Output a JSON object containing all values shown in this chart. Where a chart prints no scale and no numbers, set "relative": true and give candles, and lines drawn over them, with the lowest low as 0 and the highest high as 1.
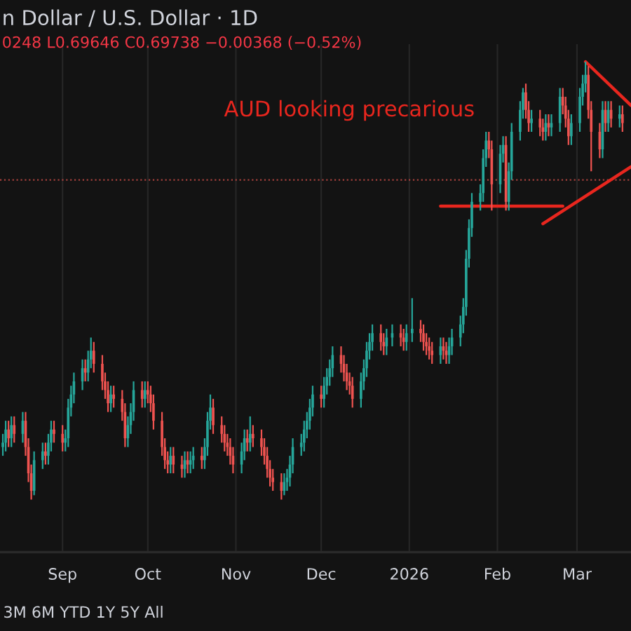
{
  "chart_data": {
    "type": "candlestick",
    "title": "n Dollar / U.S. Dollar · 1D",
    "subtitle": "0248 L0.69646 C0.69738 −0.00368 (−0.52%)",
    "annotations": [
      "AUD looking precarious",
      "3M 6M YTD 1Y 5Y All"
    ],
    "relative": true,
    "grid": "x",
    "tick_labels": "x",
    "xlim": [
      "2025-08-10",
      "2026-03-20"
    ],
    "xticks": [
      {
        "value": "2025-09-01",
        "label": "Sep"
      },
      {
        "value": "2025-10-01",
        "label": "Oct"
      },
      {
        "value": "2025-11-01",
        "label": "Nov"
      },
      {
        "value": "2025-12-01",
        "label": "Dec"
      },
      {
        "value": "2026-01-01",
        "label": "2026"
      },
      {
        "value": "2026-02-01",
        "label": "Feb"
      },
      {
        "value": "2026-03-01",
        "label": "Mar"
      }
    ],
    "x": [
      "2025-08-11",
      "2025-08-12",
      "2025-08-13",
      "2025-08-14",
      "2025-08-15",
      "2025-08-18",
      "2025-08-19",
      "2025-08-20",
      "2025-08-21",
      "2025-08-22",
      "2025-08-25",
      "2025-08-26",
      "2025-08-27",
      "2025-08-28",
      "2025-08-29",
      "2025-09-01",
      "2025-09-02",
      "2025-09-03",
      "2025-09-04",
      "2025-09-05",
      "2025-09-08",
      "2025-09-09",
      "2025-09-10",
      "2025-09-11",
      "2025-09-12",
      "2025-09-15",
      "2025-09-16",
      "2025-09-17",
      "2025-09-18",
      "2025-09-19",
      "2025-09-22",
      "2025-09-23",
      "2025-09-24",
      "2025-09-25",
      "2025-09-26",
      "2025-09-29",
      "2025-09-30",
      "2025-10-01",
      "2025-10-02",
      "2025-10-03",
      "2025-10-06",
      "2025-10-07",
      "2025-10-08",
      "2025-10-09",
      "2025-10-10",
      "2025-10-13",
      "2025-10-14",
      "2025-10-15",
      "2025-10-16",
      "2025-10-17",
      "2025-10-20",
      "2025-10-21",
      "2025-10-22",
      "2025-10-23",
      "2025-10-24",
      "2025-10-27",
      "2025-10-28",
      "2025-10-29",
      "2025-10-30",
      "2025-10-31",
      "2025-11-03",
      "2025-11-04",
      "2025-11-05",
      "2025-11-06",
      "2025-11-07",
      "2025-11-10",
      "2025-11-11",
      "2025-11-12",
      "2025-11-13",
      "2025-11-14",
      "2025-11-17",
      "2025-11-18",
      "2025-11-19",
      "2025-11-20",
      "2025-11-21",
      "2025-11-24",
      "2025-11-25",
      "2025-11-26",
      "2025-11-27",
      "2025-11-28",
      "2025-12-01",
      "2025-12-02",
      "2025-12-03",
      "2025-12-04",
      "2025-12-05",
      "2025-12-08",
      "2025-12-09",
      "2025-12-10",
      "2025-12-11",
      "2025-12-12",
      "2025-12-15",
      "2025-12-16",
      "2025-12-17",
      "2025-12-18",
      "2025-12-19",
      "2025-12-22",
      "2025-12-23",
      "2025-12-24",
      "2025-12-26",
      "2025-12-29",
      "2025-12-30",
      "2025-12-31",
      "2026-01-02",
      "2026-01-05",
      "2026-01-06",
      "2026-01-07",
      "2026-01-08",
      "2026-01-09",
      "2026-01-12",
      "2026-01-13",
      "2026-01-14",
      "2026-01-15",
      "2026-01-16",
      "2026-01-19",
      "2026-01-20",
      "2026-01-21",
      "2026-01-22",
      "2026-01-23",
      "2026-01-26",
      "2026-01-27",
      "2026-01-28",
      "2026-01-29",
      "2026-01-30",
      "2026-02-02",
      "2026-02-03",
      "2026-02-04",
      "2026-02-05",
      "2026-02-06",
      "2026-02-09",
      "2026-02-10",
      "2026-02-11",
      "2026-02-12",
      "2026-02-13",
      "2026-02-16",
      "2026-02-17",
      "2026-02-18",
      "2026-02-19",
      "2026-02-20",
      "2026-02-23",
      "2026-02-24",
      "2026-02-25",
      "2026-02-26",
      "2026-02-27",
      "2026-03-02",
      "2026-03-03",
      "2026-03-04",
      "2026-03-05",
      "2026-03-06",
      "2026-03-09",
      "2026-03-10",
      "2026-03-11",
      "2026-03-12",
      "2026-03-13",
      "2026-03-16",
      "2026-03-17"
    ],
    "ohlc": [
      [
        0.12,
        0.15,
        0.1,
        0.13
      ],
      [
        0.13,
        0.18,
        0.11,
        0.16
      ],
      [
        0.16,
        0.18,
        0.12,
        0.14
      ],
      [
        0.14,
        0.19,
        0.12,
        0.17
      ],
      [
        0.17,
        0.19,
        0.13,
        0.15
      ],
      [
        0.15,
        0.2,
        0.13,
        0.18
      ],
      [
        0.18,
        0.2,
        0.1,
        0.12
      ],
      [
        0.12,
        0.14,
        0.04,
        0.06
      ],
      [
        0.06,
        0.08,
        0,
        0.02
      ],
      [
        0.02,
        0.11,
        0.01,
        0.09
      ],
      [
        0.09,
        0.13,
        0.07,
        0.11
      ],
      [
        0.11,
        0.13,
        0.08,
        0.1
      ],
      [
        0.1,
        0.15,
        0.08,
        0.13
      ],
      [
        0.13,
        0.18,
        0.11,
        0.16
      ],
      [
        0.16,
        0.18,
        0.13,
        0.15
      ],
      [
        0.15,
        0.17,
        0.11,
        0.13
      ],
      [
        0.13,
        0.16,
        0.11,
        0.14
      ],
      [
        0.14,
        0.23,
        0.12,
        0.21
      ],
      [
        0.21,
        0.26,
        0.19,
        0.24
      ],
      [
        0.24,
        0.29,
        0.22,
        0.27
      ],
      [
        0.27,
        0.32,
        0.25,
        0.3
      ],
      [
        0.3,
        0.32,
        0.27,
        0.29
      ],
      [
        0.29,
        0.34,
        0.27,
        0.32
      ],
      [
        0.32,
        0.37,
        0.3,
        0.34
      ],
      [
        0.34,
        0.36,
        0.29,
        0.31
      ],
      [
        0.31,
        0.33,
        0.25,
        0.27
      ],
      [
        0.27,
        0.29,
        0.23,
        0.25
      ],
      [
        0.25,
        0.27,
        0.2,
        0.22
      ],
      [
        0.22,
        0.26,
        0.2,
        0.24
      ],
      [
        0.24,
        0.26,
        0.21,
        0.23
      ],
      [
        0.23,
        0.25,
        0.18,
        0.2
      ],
      [
        0.2,
        0.22,
        0.12,
        0.14
      ],
      [
        0.14,
        0.19,
        0.12,
        0.17
      ],
      [
        0.17,
        0.22,
        0.15,
        0.2
      ],
      [
        0.2,
        0.27,
        0.18,
        0.25
      ],
      [
        0.25,
        0.27,
        0.21,
        0.23
      ],
      [
        0.23,
        0.27,
        0.21,
        0.25
      ],
      [
        0.25,
        0.27,
        0.22,
        0.24
      ],
      [
        0.24,
        0.26,
        0.2,
        0.22
      ],
      [
        0.22,
        0.24,
        0.16,
        0.18
      ],
      [
        0.18,
        0.2,
        0.1,
        0.12
      ],
      [
        0.12,
        0.14,
        0.07,
        0.09
      ],
      [
        0.09,
        0.11,
        0.06,
        0.08
      ],
      [
        0.08,
        0.12,
        0.06,
        0.1
      ],
      [
        0.1,
        0.12,
        0.06,
        0.08
      ],
      [
        0.08,
        0.1,
        0.05,
        0.07
      ],
      [
        0.07,
        0.11,
        0.05,
        0.09
      ],
      [
        0.09,
        0.11,
        0.06,
        0.08
      ],
      [
        0.08,
        0.11,
        0.06,
        0.09
      ],
      [
        0.09,
        0.12,
        0.07,
        0.1
      ],
      [
        0.1,
        0.12,
        0.07,
        0.09
      ],
      [
        0.09,
        0.14,
        0.07,
        0.12
      ],
      [
        0.12,
        0.2,
        0.1,
        0.18
      ],
      [
        0.18,
        0.24,
        0.16,
        0.21
      ],
      [
        0.21,
        0.23,
        0.15,
        0.17
      ],
      [
        0.17,
        0.19,
        0.13,
        0.15
      ],
      [
        0.15,
        0.17,
        0.11,
        0.13
      ],
      [
        0.13,
        0.15,
        0.1,
        0.12
      ],
      [
        0.12,
        0.14,
        0.08,
        0.1
      ],
      [
        0.1,
        0.12,
        0.06,
        0.08
      ],
      [
        0.08,
        0.13,
        0.06,
        0.11
      ],
      [
        0.11,
        0.16,
        0.09,
        0.14
      ],
      [
        0.14,
        0.16,
        0.11,
        0.13
      ],
      [
        0.13,
        0.19,
        0.11,
        0.15
      ],
      [
        0.15,
        0.17,
        0.12,
        0.14
      ],
      [
        0.14,
        0.16,
        0.1,
        0.12
      ],
      [
        0.12,
        0.14,
        0.08,
        0.1
      ],
      [
        0.1,
        0.12,
        0.05,
        0.07
      ],
      [
        0.07,
        0.09,
        0.03,
        0.05
      ],
      [
        0.05,
        0.07,
        0.02,
        0.04
      ],
      [
        0.04,
        0.06,
        0,
        0.02
      ],
      [
        0.02,
        0.06,
        0.01,
        0.04
      ],
      [
        0.04,
        0.07,
        0.02,
        0.05
      ],
      [
        0.05,
        0.1,
        0.03,
        0.08
      ],
      [
        0.08,
        0.14,
        0.06,
        0.12
      ],
      [
        0.12,
        0.15,
        0.1,
        0.13
      ],
      [
        0.13,
        0.18,
        0.11,
        0.16
      ],
      [
        0.16,
        0.2,
        0.14,
        0.18
      ],
      [
        0.18,
        0.23,
        0.16,
        0.21
      ],
      [
        0.21,
        0.26,
        0.19,
        0.24
      ],
      [
        0.24,
        0.26,
        0.21,
        0.23
      ],
      [
        0.23,
        0.28,
        0.21,
        0.26
      ],
      [
        0.26,
        0.3,
        0.24,
        0.28
      ],
      [
        0.28,
        0.32,
        0.26,
        0.3
      ],
      [
        0.3,
        0.35,
        0.28,
        0.33
      ],
      [
        0.33,
        0.35,
        0.29,
        0.31
      ],
      [
        0.31,
        0.33,
        0.27,
        0.29
      ],
      [
        0.29,
        0.31,
        0.25,
        0.27
      ],
      [
        0.27,
        0.29,
        0.24,
        0.26
      ],
      [
        0.26,
        0.28,
        0.21,
        0.23
      ],
      [
        0.23,
        0.29,
        0.21,
        0.27
      ],
      [
        0.27,
        0.32,
        0.25,
        0.3
      ],
      [
        0.3,
        0.36,
        0.28,
        0.34
      ],
      [
        0.34,
        0.38,
        0.32,
        0.36
      ],
      [
        0.36,
        0.4,
        0.34,
        0.38
      ],
      [
        0.38,
        0.4,
        0.34,
        0.36
      ],
      [
        0.36,
        0.38,
        0.33,
        0.35
      ],
      [
        0.35,
        0.39,
        0.33,
        0.37
      ],
      [
        0.37,
        0.4,
        0.35,
        0.38
      ],
      [
        0.38,
        0.4,
        0.35,
        0.37
      ],
      [
        0.37,
        0.39,
        0.34,
        0.36
      ],
      [
        0.36,
        0.4,
        0.34,
        0.38
      ],
      [
        0.38,
        0.46,
        0.36,
        0.39
      ],
      [
        0.39,
        0.41,
        0.36,
        0.38
      ],
      [
        0.38,
        0.4,
        0.34,
        0.36
      ],
      [
        0.36,
        0.38,
        0.33,
        0.35
      ],
      [
        0.35,
        0.37,
        0.32,
        0.34
      ],
      [
        0.34,
        0.36,
        0.31,
        0.33
      ],
      [
        0.33,
        0.37,
        0.31,
        0.35
      ],
      [
        0.35,
        0.37,
        0.32,
        0.34
      ],
      [
        0.34,
        0.36,
        0.31,
        0.33
      ],
      [
        0.33,
        0.37,
        0.31,
        0.35
      ],
      [
        0.35,
        0.39,
        0.33,
        0.37
      ],
      [
        0.37,
        0.42,
        0.35,
        0.4
      ],
      [
        0.4,
        0.46,
        0.38,
        0.44
      ],
      [
        0.44,
        0.57,
        0.42,
        0.55
      ],
      [
        0.55,
        0.64,
        0.53,
        0.62
      ],
      [
        0.62,
        0.7,
        0.6,
        0.68
      ],
      [
        0.68,
        0.72,
        0.66,
        0.7
      ],
      [
        0.7,
        0.8,
        0.68,
        0.78
      ],
      [
        0.78,
        0.84,
        0.76,
        0.82
      ],
      [
        0.82,
        0.84,
        0.78,
        0.8
      ],
      [
        0.8,
        0.82,
        0.66,
        0.72
      ],
      [
        0.72,
        0.81,
        0.7,
        0.79
      ],
      [
        0.79,
        0.83,
        0.77,
        0.81
      ],
      [
        0.81,
        0.83,
        0.66,
        0.68
      ],
      [
        0.68,
        0.77,
        0.66,
        0.75
      ],
      [
        0.75,
        0.86,
        0.73,
        0.84
      ],
      [
        0.84,
        0.91,
        0.82,
        0.89
      ],
      [
        0.89,
        0.94,
        0.87,
        0.93
      ],
      [
        0.93,
        0.95,
        0.87,
        0.89
      ],
      [
        0.89,
        0.91,
        0.84,
        0.86
      ],
      [
        0.86,
        0.89,
        0.84,
        0.87
      ],
      [
        0.87,
        0.89,
        0.83,
        0.85
      ],
      [
        0.85,
        0.87,
        0.82,
        0.84
      ],
      [
        0.84,
        0.88,
        0.82,
        0.86
      ],
      [
        0.86,
        0.88,
        0.83,
        0.85
      ],
      [
        0.85,
        0.88,
        0.83,
        0.86
      ],
      [
        0.86,
        0.94,
        0.84,
        0.92
      ],
      [
        0.92,
        0.94,
        0.88,
        0.9
      ],
      [
        0.9,
        0.92,
        0.85,
        0.87
      ],
      [
        0.87,
        0.89,
        0.81,
        0.83
      ],
      [
        0.83,
        0.88,
        0.81,
        0.86
      ],
      [
        0.86,
        0.94,
        0.84,
        0.92
      ],
      [
        0.92,
        0.97,
        0.9,
        0.95
      ],
      [
        0.95,
        1,
        0.93,
        0.97
      ],
      [
        0.97,
        0.99,
        0.87,
        0.89
      ],
      [
        0.89,
        0.91,
        0.75,
        0.84
      ],
      [
        0.84,
        0.86,
        0.78,
        0.8
      ],
      [
        0.8,
        0.91,
        0.78,
        0.89
      ],
      [
        0.89,
        0.91,
        0.84,
        0.86
      ],
      [
        0.86,
        0.91,
        0.84,
        0.89
      ],
      [
        0.89,
        0.91,
        0.85,
        0.87
      ],
      [
        0.87,
        0.9,
        0.85,
        0.88
      ],
      [
        0.88,
        0.9,
        0.84,
        0.86
      ]
    ],
    "colors": [
      "#26a69a",
      "#26a69a",
      "#ef5350",
      "#26a69a",
      "#ef5350",
      "#26a69a",
      "#ef5350",
      "#ef5350",
      "#ef5350",
      "#26a69a",
      "#26a69a",
      "#ef5350",
      "#26a69a",
      "#26a69a",
      "#ef5350",
      "#ef5350",
      "#26a69a",
      "#26a69a",
      "#26a69a",
      "#26a69a",
      "#26a69a",
      "#ef5350",
      "#26a69a",
      "#26a69a",
      "#ef5350",
      "#ef5350",
      "#ef5350",
      "#ef5350",
      "#26a69a",
      "#ef5350",
      "#ef5350",
      "#ef5350",
      "#26a69a",
      "#26a69a",
      "#26a69a",
      "#ef5350",
      "#26a69a",
      "#ef5350",
      "#ef5350",
      "#ef5350",
      "#ef5350",
      "#ef5350",
      "#ef5350",
      "#26a69a",
      "#ef5350",
      "#ef5350",
      "#26a69a",
      "#ef5350",
      "#26a69a",
      "#26a69a",
      "#ef5350",
      "#26a69a",
      "#26a69a",
      "#26a69a",
      "#ef5350",
      "#ef5350",
      "#ef5350",
      "#ef5350",
      "#ef5350",
      "#ef5350",
      "#26a69a",
      "#26a69a",
      "#ef5350",
      "#26a69a",
      "#ef5350",
      "#ef5350",
      "#ef5350",
      "#ef5350",
      "#ef5350",
      "#ef5350",
      "#ef5350",
      "#26a69a",
      "#26a69a",
      "#26a69a",
      "#26a69a",
      "#26a69a",
      "#26a69a",
      "#26a69a",
      "#26a69a",
      "#26a69a",
      "#ef5350",
      "#26a69a",
      "#26a69a",
      "#26a69a",
      "#26a69a",
      "#ef5350",
      "#ef5350",
      "#ef5350",
      "#ef5350",
      "#ef5350",
      "#26a69a",
      "#26a69a",
      "#26a69a",
      "#26a69a",
      "#26a69a",
      "#ef5350",
      "#ef5350",
      "#26a69a",
      "#26a69a",
      "#ef5350",
      "#ef5350",
      "#26a69a",
      "#26a69a",
      "#ef5350",
      "#ef5350",
      "#ef5350",
      "#ef5350",
      "#ef5350",
      "#26a69a",
      "#ef5350",
      "#ef5350",
      "#26a69a",
      "#26a69a",
      "#26a69a",
      "#26a69a",
      "#26a69a",
      "#26a69a",
      "#26a69a",
      "#26a69a",
      "#26a69a",
      "#26a69a",
      "#ef5350",
      "#ef5350",
      "#26a69a",
      "#26a69a",
      "#ef5350",
      "#26a69a",
      "#26a69a",
      "#26a69a",
      "#26a69a",
      "#ef5350",
      "#ef5350",
      "#26a69a",
      "#ef5350",
      "#ef5350",
      "#26a69a",
      "#ef5350",
      "#26a69a",
      "#26a69a",
      "#ef5350",
      "#ef5350",
      "#ef5350",
      "#26a69a",
      "#26a69a",
      "#26a69a",
      "#26a69a",
      "#ef5350",
      "#ef5350",
      "#ef5350",
      "#26a69a",
      "#ef5350",
      "#26a69a",
      "#ef5350",
      "#26a69a",
      "#ef5350"
    ],
    "series": [
      {
        "type": "line",
        "color": "#e8261e",
        "x": [
          "2026-01-12",
          "2026-02-24"
        ],
        "values": [
          0.67,
          0.67
        ]
      },
      {
        "type": "line",
        "color": "#e8261e",
        "x": [
          "2026-02-17",
          "2026-03-20"
        ],
        "values": [
          0.63,
          0.76
        ]
      },
      {
        "type": "line",
        "color": "#e8261e",
        "x": [
          "2026-03-04",
          "2026-03-20"
        ],
        "values": [
          1,
          0.9
        ]
      }
    ],
    "ref_lines": [
      {
        "axis": "y",
        "value": 0.73,
        "color": "#a3403c",
        "line_style": "dotted"
      }
    ]
  }
}
